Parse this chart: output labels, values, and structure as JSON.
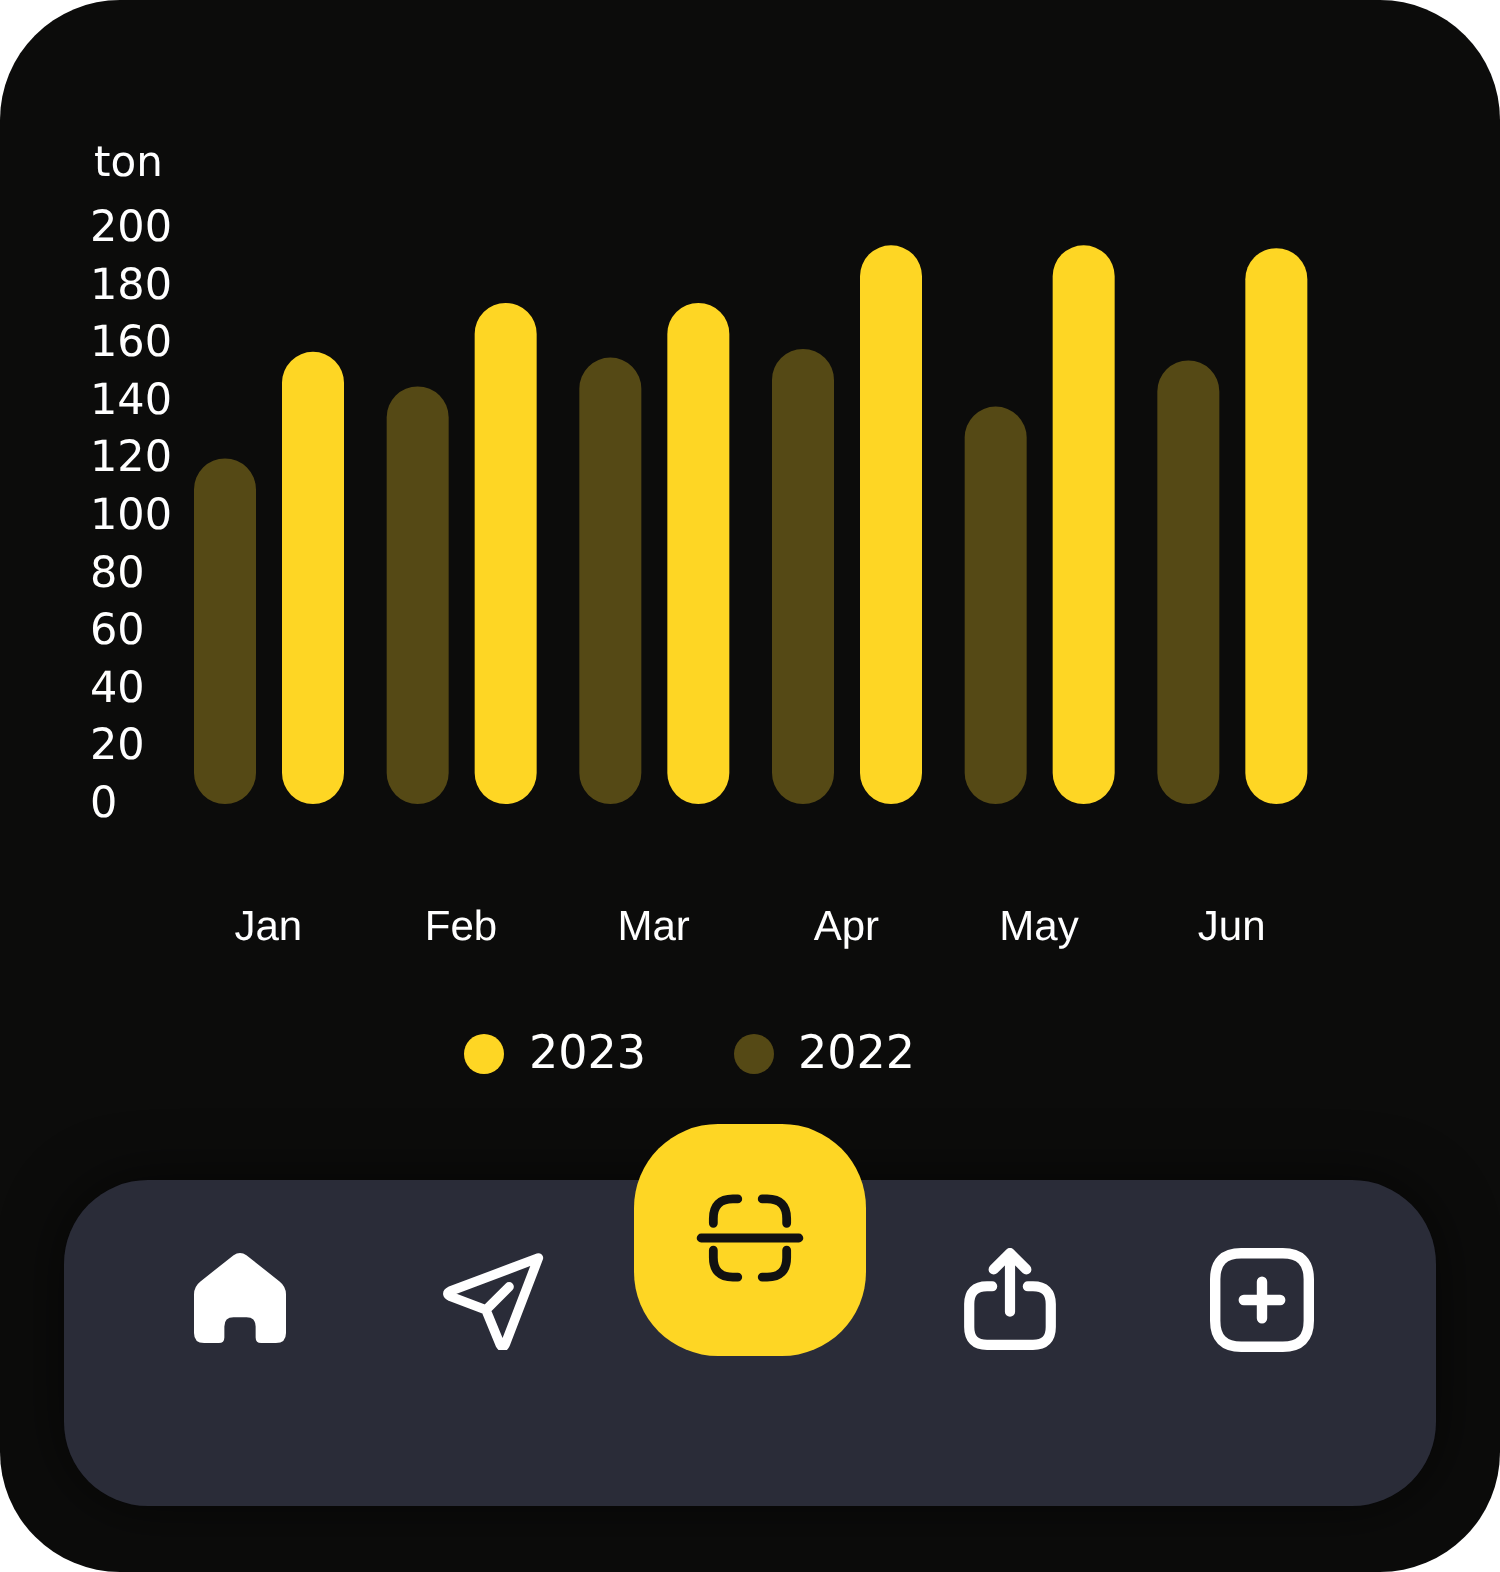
{
  "chart_data": {
    "type": "bar",
    "ylabel": "ton",
    "categories": [
      "Jan",
      "Feb",
      "Mar",
      "Apr",
      "May",
      "Jun"
    ],
    "series": [
      {
        "name": "2023",
        "color": "#fed624",
        "values": [
          157,
          174,
          174,
          194,
          194,
          193
        ]
      },
      {
        "name": "2022",
        "color": "#554915",
        "values": [
          120,
          145,
          155,
          158,
          138,
          154
        ]
      }
    ],
    "ylim": [
      0,
      200
    ],
    "yticks": [
      0,
      20,
      40,
      60,
      80,
      100,
      120,
      140,
      160,
      180,
      200
    ],
    "legend": "bottom"
  }
}
